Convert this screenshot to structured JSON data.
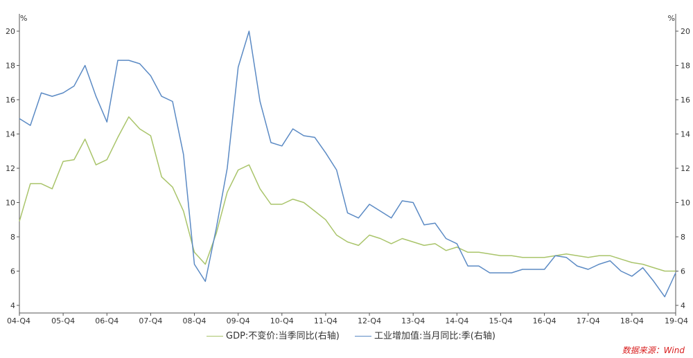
{
  "chart_data": {
    "type": "line",
    "left_unit": "%",
    "right_unit": "%",
    "ylim": [
      4,
      20
    ],
    "yticks": [
      4,
      6,
      8,
      10,
      12,
      14,
      16,
      18,
      20
    ],
    "right_yticks": [
      4,
      6,
      8,
      10,
      12,
      14,
      16,
      18,
      20
    ],
    "grid": false,
    "legend_position": "bottom",
    "categories": [
      "04-Q4",
      "05-Q4",
      "06-Q4",
      "07-Q4",
      "08-Q4",
      "09-Q4",
      "10-Q4",
      "11-Q4",
      "12-Q4",
      "13-Q4",
      "14-Q4",
      "15-Q4",
      "16-Q4",
      "17-Q4",
      "18-Q4",
      "19-Q4"
    ],
    "x": [
      0,
      1,
      2,
      3,
      4,
      5,
      6,
      7,
      8,
      9,
      10,
      11,
      12,
      13,
      14,
      15,
      16,
      17,
      18,
      19,
      20,
      21,
      22,
      23,
      24,
      25,
      26,
      27,
      28,
      29,
      30,
      31,
      32,
      33,
      34,
      35,
      36,
      37,
      38,
      39,
      40,
      41,
      42,
      43,
      44,
      45,
      46,
      47,
      48,
      49,
      50,
      51,
      52,
      53,
      54,
      55,
      56,
      57,
      58,
      59,
      60
    ],
    "series": [
      {
        "name": "GDP:不变价:当季同比(右轴)",
        "color": "#a9c46a",
        "values": [
          8.9,
          11.1,
          11.1,
          10.8,
          12.4,
          12.5,
          13.7,
          12.2,
          12.5,
          13.8,
          15.0,
          14.3,
          13.9,
          11.5,
          10.9,
          9.5,
          7.1,
          6.4,
          8.2,
          10.6,
          11.9,
          12.2,
          10.8,
          9.9,
          9.9,
          10.2,
          10.0,
          9.5,
          9.0,
          8.1,
          7.7,
          7.5,
          8.1,
          7.9,
          7.6,
          7.9,
          7.7,
          7.5,
          7.6,
          7.2,
          7.4,
          7.1,
          7.1,
          7.0,
          6.9,
          6.9,
          6.8,
          6.8,
          6.8,
          6.9,
          7.0,
          6.9,
          6.8,
          6.9,
          6.9,
          6.7,
          6.5,
          6.4,
          6.2,
          6.0,
          6.0
        ]
      },
      {
        "name": "工业增加值:当月同比:季(右轴)",
        "color": "#5b8ac4",
        "values": [
          14.9,
          14.5,
          16.4,
          16.2,
          16.4,
          16.8,
          18.0,
          16.2,
          14.7,
          18.3,
          18.3,
          18.1,
          17.4,
          16.2,
          15.9,
          12.8,
          6.4,
          5.4,
          8.5,
          12.0,
          17.9,
          20.0,
          15.9,
          13.5,
          13.3,
          14.3,
          13.9,
          13.8,
          12.9,
          11.9,
          9.4,
          9.1,
          9.9,
          9.5,
          9.1,
          10.1,
          10.0,
          8.7,
          8.8,
          7.9,
          7.6,
          6.3,
          6.3,
          5.9,
          5.9,
          5.9,
          6.1,
          6.1,
          6.1,
          6.9,
          6.8,
          6.3,
          6.1,
          6.4,
          6.6,
          6.0,
          5.7,
          6.2,
          5.4,
          4.5,
          5.9
        ]
      }
    ]
  },
  "source_text": "数据来源：Wind"
}
